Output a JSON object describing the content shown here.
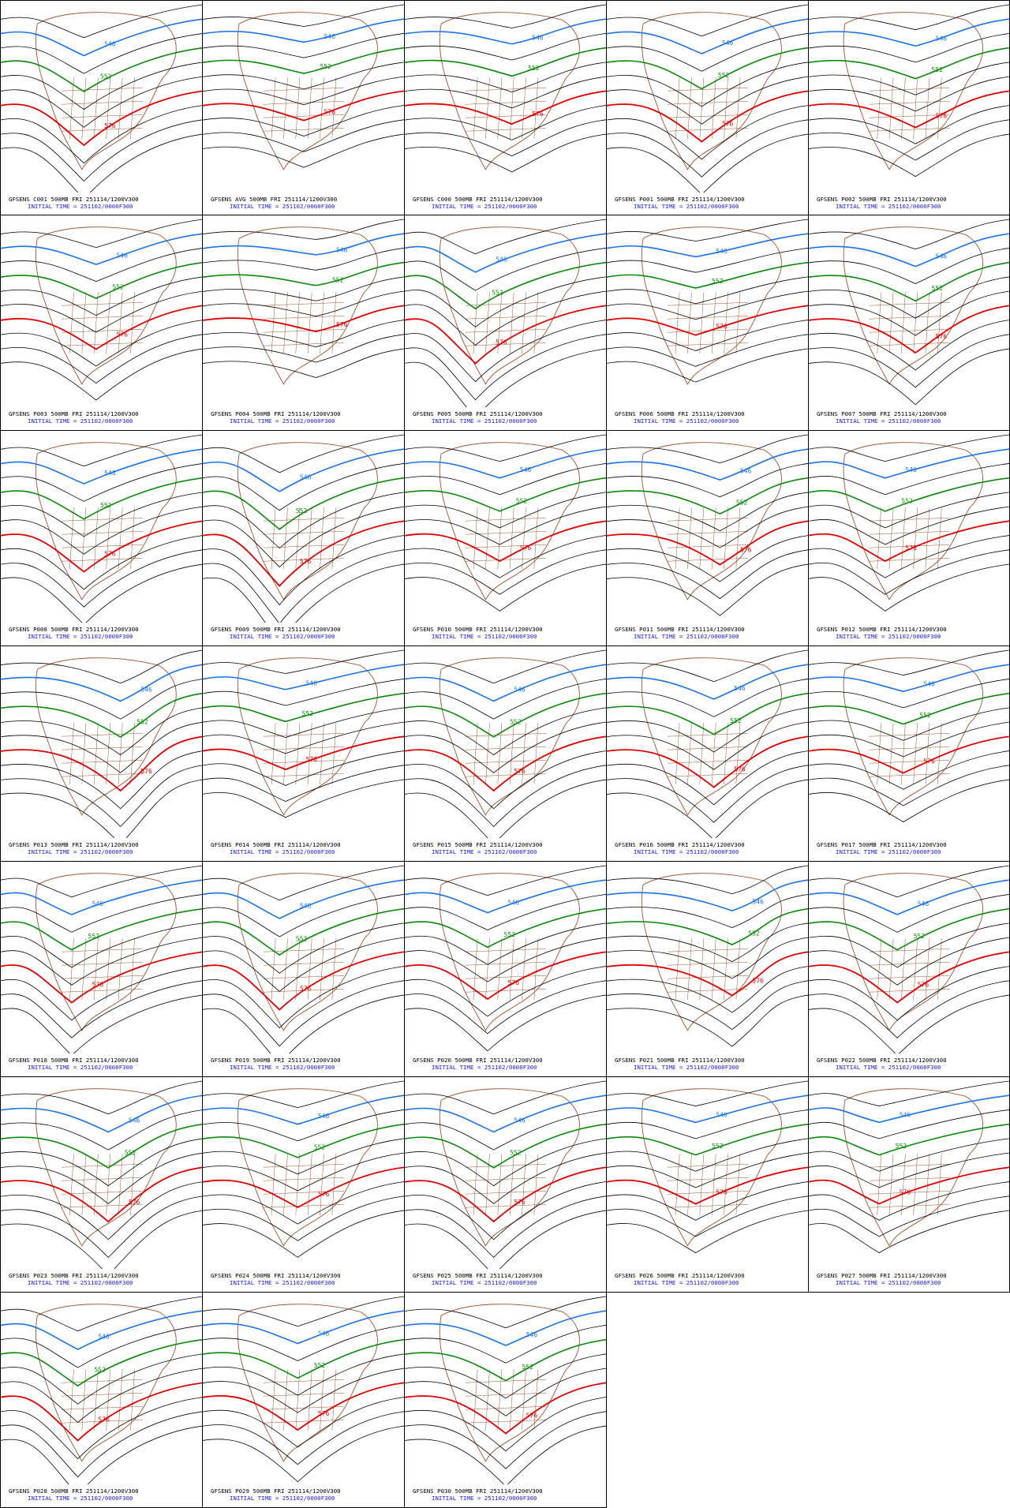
{
  "layout": {
    "columns": 5,
    "rows": 7,
    "panel_count": 33
  },
  "colors": {
    "contour_546": "#1a73e8",
    "contour_552": "#0a8a0a",
    "contour_576": "#e00000",
    "contour_other": "#000000",
    "coastline": "#a0522d",
    "caption_line1": "#000000",
    "caption_line2": "#1a1ae6"
  },
  "contour_labels": {
    "blue": "546",
    "green": "552",
    "red": "576"
  },
  "map_region": "North America 500mb geopotential height",
  "panels": [
    {
      "caption": "GFSENS C001 500MB FRI 251114/1200V300",
      "init": "INITIAL TIME = 251102/0000F300",
      "trough": 0.35,
      "amp": 0.55
    },
    {
      "caption": "GFSENS AVG 500MB FRI 251114/1200V300",
      "init": "INITIAL TIME = 251102/0000F300",
      "trough": 0.5,
      "amp": 0.2
    },
    {
      "caption": "GFSENS C000 500MB FRI 251114/1200V300",
      "init": "INITIAL TIME = 251102/0000F300",
      "trough": 0.55,
      "amp": 0.25
    },
    {
      "caption": "GFSENS P001 500MB FRI 251114/1200V300",
      "init": "INITIAL TIME = 251102/0000F300",
      "trough": 0.45,
      "amp": 0.5
    },
    {
      "caption": "GFSENS P002 500MB FRI 251114/1200V300",
      "init": "INITIAL TIME = 251102/0000F300",
      "trough": 0.55,
      "amp": 0.3
    },
    {
      "caption": "GFSENS P003 500MB FRI 251114/1200V300",
      "init": "INITIAL TIME = 251102/0000F300",
      "trough": 0.45,
      "amp": 0.4
    },
    {
      "caption": "GFSENS P004 500MB FRI 251114/1200V300",
      "init": "INITIAL TIME = 251102/0000F300",
      "trough": 0.6,
      "amp": 0.15
    },
    {
      "caption": "GFSENS P005 500MB FRI 251114/1200V300",
      "init": "INITIAL TIME = 251102/0000F300",
      "trough": 0.25,
      "amp": 0.6
    },
    {
      "caption": "GFSENS P006 500MB FRI 251114/1200V300",
      "init": "INITIAL TIME = 251102/0000F300",
      "trough": 0.4,
      "amp": 0.2
    },
    {
      "caption": "GFSENS P007 500MB FRI 251114/1200V300",
      "init": "INITIAL TIME = 251102/0000F300",
      "trough": 0.55,
      "amp": 0.45
    },
    {
      "caption": "GFSENS P008 500MB FRI 251114/1200V300",
      "init": "INITIAL TIME = 251102/0000F300",
      "trough": 0.35,
      "amp": 0.5
    },
    {
      "caption": "GFSENS P009 500MB FRI 251114/1200V300",
      "init": "INITIAL TIME = 251102/0000F300",
      "trough": 0.3,
      "amp": 0.7
    },
    {
      "caption": "GFSENS P010 500MB FRI 251114/1200V300",
      "init": "INITIAL TIME = 251102/0000F300",
      "trough": 0.45,
      "amp": 0.35
    },
    {
      "caption": "GFSENS P011 500MB FRI 251114/1200V300",
      "init": "INITIAL TIME = 251102/0000F300",
      "trough": 0.6,
      "amp": 0.4
    },
    {
      "caption": "GFSENS P012 500MB FRI 251114/1200V300",
      "init": "INITIAL TIME = 251102/0000F300",
      "trough": 0.3,
      "amp": 0.35
    },
    {
      "caption": "GFSENS P013 500MB FRI 251114/1200V300",
      "init": "INITIAL TIME = 251102/0000F300",
      "trough": 0.65,
      "amp": 0.55
    },
    {
      "caption": "GFSENS P014 500MB FRI 251114/1200V300",
      "init": "INITIAL TIME = 251102/0000F300",
      "trough": 0.35,
      "amp": 0.25
    },
    {
      "caption": "GFSENS P015 500MB FRI 251114/1200V300",
      "init": "INITIAL TIME = 251102/0000F300",
      "trough": 0.4,
      "amp": 0.55
    },
    {
      "caption": "GFSENS P016 500MB FRI 251114/1200V300",
      "init": "INITIAL TIME = 251102/0000F300",
      "trough": 0.55,
      "amp": 0.5
    },
    {
      "caption": "GFSENS P017 500MB FRI 251114/1200V300",
      "init": "INITIAL TIME = 251102/0000F300",
      "trough": 0.45,
      "amp": 0.3
    },
    {
      "caption": "GFSENS P018 500MB FRI 251114/1200V300",
      "init": "INITIAL TIME = 251102/0000F300",
      "trough": 0.25,
      "amp": 0.5
    },
    {
      "caption": "GFSENS P019 500MB FRI 251114/1200V300",
      "init": "INITIAL TIME = 251102/0000F300",
      "trough": 0.3,
      "amp": 0.6
    },
    {
      "caption": "GFSENS P020 500MB FRI 251114/1200V300",
      "init": "INITIAL TIME = 251102/0000F300",
      "trough": 0.35,
      "amp": 0.45
    },
    {
      "caption": "GFSENS P021 500MB FRI 251114/1200V300",
      "init": "INITIAL TIME = 251102/0000F300",
      "trough": 0.7,
      "amp": 0.4
    },
    {
      "caption": "GFSENS P022 500MB FRI 251114/1200V300",
      "init": "INITIAL TIME = 251102/0000F300",
      "trough": 0.4,
      "amp": 0.5
    },
    {
      "caption": "GFSENS P023 500MB FRI 251114/1200V300",
      "init": "INITIAL TIME = 251102/0000F300",
      "trough": 0.55,
      "amp": 0.55
    },
    {
      "caption": "GFSENS P024 500MB FRI 251114/1200V300",
      "init": "INITIAL TIME = 251102/0000F300",
      "trough": 0.45,
      "amp": 0.35
    },
    {
      "caption": "GFSENS P025 500MB FRI 251114/1200V300",
      "init": "INITIAL TIME = 251102/0000F300",
      "trough": 0.4,
      "amp": 0.55
    },
    {
      "caption": "GFSENS P026 500MB FRI 251114/1200V300",
      "init": "INITIAL TIME = 251102/0000F300",
      "trough": 0.4,
      "amp": 0.3
    },
    {
      "caption": "GFSENS P027 500MB FRI 251114/1200V300",
      "init": "INITIAL TIME = 251102/0000F300",
      "trough": 0.25,
      "amp": 0.3
    },
    {
      "caption": "GFSENS P028 500MB FRI 251114/1200V300",
      "init": "INITIAL TIME = 251102/0000F300",
      "trough": 0.3,
      "amp": 0.6
    },
    {
      "caption": "GFSENS P029 500MB FRI 251114/1200V300",
      "init": "INITIAL TIME = 251102/0000F300",
      "trough": 0.45,
      "amp": 0.45
    },
    {
      "caption": "GFSENS P030 500MB FRI 251114/1200V300",
      "init": "INITIAL TIME = 251102/0000F300",
      "trough": 0.5,
      "amp": 0.5
    }
  ]
}
